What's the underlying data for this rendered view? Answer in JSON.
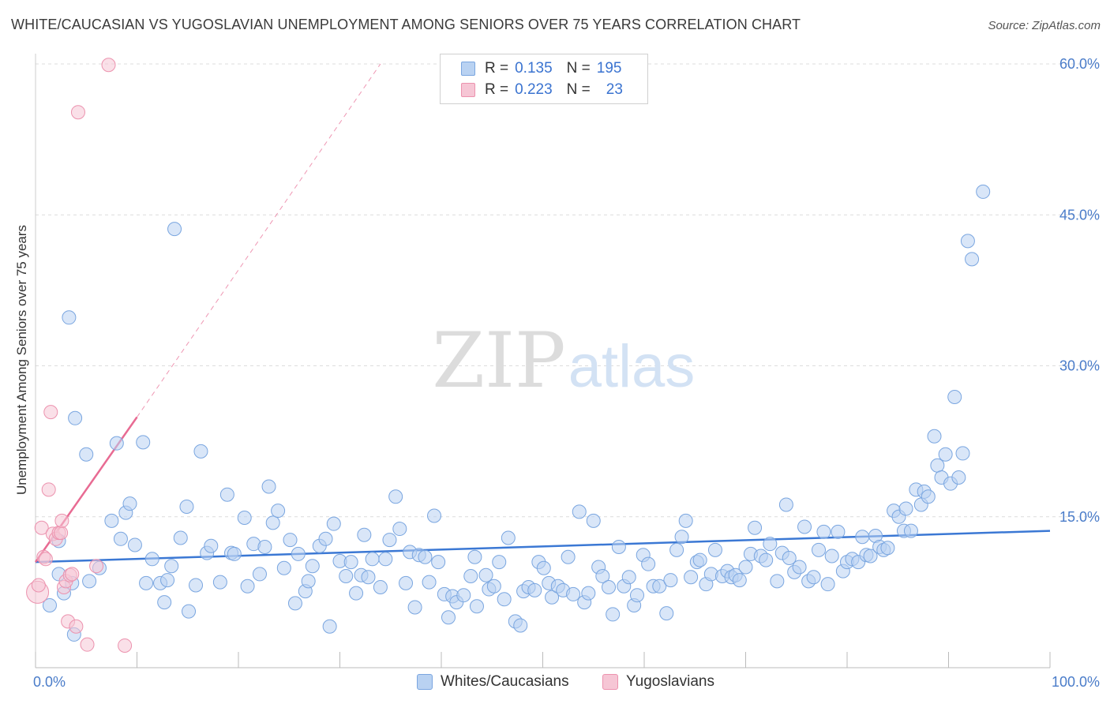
{
  "title": "WHITE/CAUCASIAN VS YUGOSLAVIAN UNEMPLOYMENT AMONG SENIORS OVER 75 YEARS CORRELATION CHART",
  "source": "Source: ZipAtlas.com",
  "watermark": {
    "zip": "ZIP",
    "atlas": "atlas"
  },
  "legend": {
    "r_label": "R =",
    "n_label": "N =",
    "rows": [
      {
        "r": "0.135",
        "n": "195"
      },
      {
        "r": "0.223",
        "n": "23"
      }
    ]
  },
  "colors": {
    "blue_fill": "#b9d2f2",
    "blue_stroke": "#7aa6e0",
    "blue_line": "#3b78d4",
    "pink_fill": "#f6c6d5",
    "pink_stroke": "#ec92ae",
    "pink_line": "#e86b93",
    "axis_text": "#4a7cc9",
    "grid": "#dcdcdc"
  },
  "chart_data": {
    "type": "scatter",
    "title": "WHITE/CAUCASIAN VS YUGOSLAVIAN UNEMPLOYMENT AMONG SENIORS OVER 75 YEARS CORRELATION CHART",
    "xlabel": "",
    "ylabel": "Unemployment Among Seniors over 75 years",
    "xlim": [
      0,
      100
    ],
    "ylim": [
      0,
      63
    ],
    "x_tick_labels": [
      "0.0%",
      "100.0%"
    ],
    "y_ticks": [
      15,
      30,
      45,
      60
    ],
    "y_tick_labels": [
      "15.0%",
      "30.0%",
      "45.0%",
      "60.0%"
    ],
    "grid": "horizontal dashed",
    "legend_position": "top-center",
    "series": [
      {
        "name": "Whites/Caucasians",
        "color": "#b9d2f2",
        "trend": {
          "x": [
            0,
            100
          ],
          "y": [
            10.5,
            13.6
          ]
        },
        "points": [
          [
            1.4,
            6.2
          ],
          [
            2.3,
            12.6
          ],
          [
            2.3,
            9.3
          ],
          [
            2.8,
            7.4
          ],
          [
            3.3,
            34.8
          ],
          [
            3.9,
            24.8
          ],
          [
            3.6,
            8.4
          ],
          [
            3.8,
            3.3
          ],
          [
            5.0,
            21.2
          ],
          [
            5.3,
            8.6
          ],
          [
            6.3,
            9.9
          ],
          [
            7.5,
            14.6
          ],
          [
            8.0,
            22.3
          ],
          [
            8.4,
            12.8
          ],
          [
            8.9,
            15.4
          ],
          [
            9.3,
            16.3
          ],
          [
            9.8,
            12.2
          ],
          [
            10.6,
            22.4
          ],
          [
            10.9,
            8.4
          ],
          [
            11.5,
            10.8
          ],
          [
            12.3,
            8.4
          ],
          [
            12.7,
            6.5
          ],
          [
            13.0,
            8.7
          ],
          [
            13.4,
            10.1
          ],
          [
            13.7,
            43.6
          ],
          [
            14.3,
            12.9
          ],
          [
            14.9,
            16.0
          ],
          [
            15.1,
            5.6
          ],
          [
            15.8,
            8.2
          ],
          [
            16.3,
            21.5
          ],
          [
            16.9,
            11.4
          ],
          [
            17.3,
            12.1
          ],
          [
            18.2,
            8.5
          ],
          [
            18.9,
            17.2
          ],
          [
            19.3,
            11.4
          ],
          [
            19.6,
            11.3
          ],
          [
            20.6,
            14.9
          ],
          [
            20.9,
            8.1
          ],
          [
            21.5,
            12.3
          ],
          [
            22.1,
            9.3
          ],
          [
            22.6,
            12.0
          ],
          [
            23.0,
            18.0
          ],
          [
            23.4,
            14.4
          ],
          [
            23.9,
            15.6
          ],
          [
            24.5,
            9.9
          ],
          [
            25.1,
            12.7
          ],
          [
            25.6,
            6.4
          ],
          [
            25.9,
            11.3
          ],
          [
            26.6,
            7.6
          ],
          [
            26.9,
            8.6
          ],
          [
            27.3,
            10.1
          ],
          [
            28.0,
            12.1
          ],
          [
            28.6,
            12.8
          ],
          [
            29.0,
            4.1
          ],
          [
            29.4,
            14.3
          ],
          [
            30.0,
            10.6
          ],
          [
            30.6,
            9.1
          ],
          [
            31.1,
            10.5
          ],
          [
            31.6,
            7.4
          ],
          [
            32.1,
            9.2
          ],
          [
            32.4,
            13.2
          ],
          [
            32.8,
            9.0
          ],
          [
            33.2,
            10.8
          ],
          [
            34.0,
            8.0
          ],
          [
            34.5,
            10.8
          ],
          [
            34.9,
            12.7
          ],
          [
            35.5,
            17.0
          ],
          [
            35.9,
            13.8
          ],
          [
            36.5,
            8.4
          ],
          [
            36.9,
            11.5
          ],
          [
            37.4,
            6.0
          ],
          [
            37.8,
            11.2
          ],
          [
            38.4,
            11.0
          ],
          [
            38.8,
            8.5
          ],
          [
            39.3,
            15.1
          ],
          [
            39.7,
            10.5
          ],
          [
            40.3,
            7.3
          ],
          [
            40.7,
            5.0
          ],
          [
            41.1,
            7.1
          ],
          [
            41.5,
            6.5
          ],
          [
            42.2,
            7.2
          ],
          [
            42.9,
            9.1
          ],
          [
            43.3,
            11.0
          ],
          [
            43.5,
            6.1
          ],
          [
            44.4,
            9.2
          ],
          [
            44.7,
            7.8
          ],
          [
            45.2,
            8.1
          ],
          [
            45.7,
            10.5
          ],
          [
            46.2,
            6.8
          ],
          [
            46.6,
            12.9
          ],
          [
            47.3,
            4.6
          ],
          [
            47.8,
            4.2
          ],
          [
            48.1,
            7.6
          ],
          [
            48.6,
            8.0
          ],
          [
            49.2,
            7.7
          ],
          [
            49.6,
            10.5
          ],
          [
            50.1,
            9.9
          ],
          [
            50.6,
            8.4
          ],
          [
            50.9,
            7.0
          ],
          [
            51.5,
            8.1
          ],
          [
            52.0,
            7.7
          ],
          [
            52.5,
            11.0
          ],
          [
            53.0,
            7.3
          ],
          [
            53.6,
            15.5
          ],
          [
            54.1,
            6.5
          ],
          [
            54.5,
            7.4
          ],
          [
            55.0,
            14.6
          ],
          [
            55.5,
            10.0
          ],
          [
            55.9,
            9.1
          ],
          [
            56.5,
            8.0
          ],
          [
            56.9,
            5.3
          ],
          [
            57.5,
            12.0
          ],
          [
            58.0,
            8.1
          ],
          [
            58.5,
            9.0
          ],
          [
            59.0,
            6.2
          ],
          [
            59.3,
            7.2
          ],
          [
            59.9,
            11.2
          ],
          [
            60.4,
            10.3
          ],
          [
            60.9,
            8.1
          ],
          [
            61.5,
            8.1
          ],
          [
            62.2,
            5.4
          ],
          [
            62.6,
            8.7
          ],
          [
            63.2,
            11.7
          ],
          [
            63.7,
            13.0
          ],
          [
            64.1,
            14.6
          ],
          [
            64.6,
            9.0
          ],
          [
            65.2,
            10.5
          ],
          [
            65.5,
            10.7
          ],
          [
            66.1,
            8.3
          ],
          [
            66.6,
            9.3
          ],
          [
            67.0,
            11.7
          ],
          [
            67.7,
            9.1
          ],
          [
            68.2,
            9.6
          ],
          [
            68.6,
            9.0
          ],
          [
            69.0,
            9.2
          ],
          [
            69.4,
            8.7
          ],
          [
            70.0,
            10.0
          ],
          [
            70.5,
            11.3
          ],
          [
            70.9,
            13.9
          ],
          [
            71.5,
            11.1
          ],
          [
            72.0,
            10.7
          ],
          [
            72.4,
            12.3
          ],
          [
            73.1,
            8.6
          ],
          [
            73.6,
            11.4
          ],
          [
            74.0,
            16.2
          ],
          [
            74.3,
            10.9
          ],
          [
            74.8,
            9.5
          ],
          [
            75.3,
            10.0
          ],
          [
            75.8,
            14.0
          ],
          [
            76.2,
            8.6
          ],
          [
            76.7,
            9.0
          ],
          [
            77.2,
            11.7
          ],
          [
            77.7,
            13.5
          ],
          [
            78.1,
            8.3
          ],
          [
            78.5,
            11.1
          ],
          [
            79.1,
            13.5
          ],
          [
            79.6,
            9.6
          ],
          [
            80.0,
            10.5
          ],
          [
            80.5,
            10.8
          ],
          [
            81.1,
            10.5
          ],
          [
            81.5,
            13.0
          ],
          [
            81.9,
            11.2
          ],
          [
            82.3,
            11.1
          ],
          [
            82.8,
            13.1
          ],
          [
            83.2,
            12.0
          ],
          [
            83.6,
            11.7
          ],
          [
            84.0,
            11.9
          ],
          [
            84.6,
            15.6
          ],
          [
            85.1,
            15.0
          ],
          [
            85.6,
            13.6
          ],
          [
            85.8,
            15.8
          ],
          [
            86.3,
            13.6
          ],
          [
            86.8,
            17.7
          ],
          [
            87.3,
            16.2
          ],
          [
            87.6,
            17.5
          ],
          [
            88.0,
            17.0
          ],
          [
            88.6,
            23.0
          ],
          [
            88.9,
            20.1
          ],
          [
            89.3,
            18.9
          ],
          [
            89.7,
            21.2
          ],
          [
            90.2,
            18.3
          ],
          [
            90.6,
            26.9
          ],
          [
            91.0,
            18.9
          ],
          [
            91.4,
            21.3
          ],
          [
            91.9,
            42.4
          ],
          [
            92.3,
            40.6
          ],
          [
            93.4,
            47.3
          ]
        ]
      },
      {
        "name": "Yugoslavians",
        "color": "#f6c6d5",
        "trend": {
          "x": [
            0,
            10
          ],
          "y": [
            10.5,
            24.9
          ]
        },
        "trend_extension": {
          "x": [
            10,
            34
          ],
          "y": [
            24.9,
            60
          ]
        },
        "points": [
          [
            0.2,
            7.5
          ],
          [
            0.3,
            8.2
          ],
          [
            0.6,
            13.9
          ],
          [
            0.8,
            11.0
          ],
          [
            1.0,
            10.8
          ],
          [
            1.3,
            17.7
          ],
          [
            1.5,
            25.4
          ],
          [
            1.7,
            13.3
          ],
          [
            2.0,
            12.8
          ],
          [
            2.3,
            13.4
          ],
          [
            2.5,
            13.4
          ],
          [
            2.6,
            14.6
          ],
          [
            2.8,
            8.0
          ],
          [
            3.0,
            8.6
          ],
          [
            3.2,
            4.6
          ],
          [
            3.4,
            9.2
          ],
          [
            3.6,
            9.3
          ],
          [
            4.0,
            4.1
          ],
          [
            4.2,
            55.2
          ],
          [
            5.1,
            2.3
          ],
          [
            6.0,
            10.1
          ],
          [
            7.2,
            59.9
          ],
          [
            8.8,
            2.2
          ]
        ]
      }
    ]
  },
  "bottom_legend": [
    "Whites/Caucasians",
    "Yugoslavians"
  ]
}
